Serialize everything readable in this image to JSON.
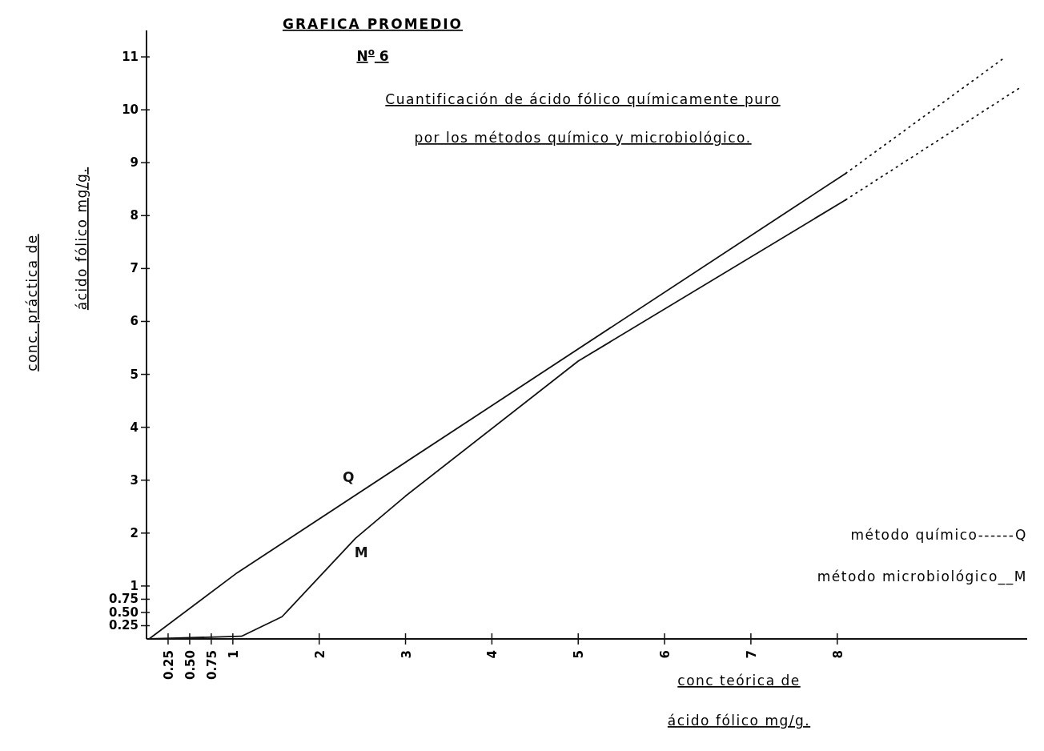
{
  "chart_data": {
    "type": "line",
    "title": "GRAFICA PROMEDIO",
    "subtitle": "N$^{o}$ 6",
    "xlabel": "conc teórica de ácido fólico mg/g.",
    "ylabel": "conc. práctica de ácido fólico mg/g.",
    "annotations": [
      "Cuantificación de ácido fólico químicamente puro por los métodos químico y microbiológico.",
      "método químico------Q",
      "método microbiológico__M"
    ],
    "series": [
      {
        "name": "Q",
        "color": "#111111",
        "x": [
          0.03,
          1.05,
          8.1
        ],
        "values": [
          0,
          1.25,
          8.8
        ]
      },
      {
        "color": "#111111",
        "x": [
          8.1,
          9.95
        ],
        "values": [
          8.8,
          11
        ],
        "line_style": "dotted"
      },
      {
        "name": "M",
        "color": "#111111",
        "x": [
          0.03,
          1.1,
          1.57,
          2.42,
          3.0,
          5.0,
          8.1
        ],
        "values": [
          0,
          0.05,
          0.42,
          1.9,
          2.7,
          5.25,
          8.3
        ]
      },
      {
        "color": "#111111",
        "x": [
          8.1,
          10.1
        ],
        "values": [
          8.3,
          10.4
        ],
        "line_style": "dotted"
      }
    ],
    "xlim": [
      0,
      10.2
    ],
    "ylim": [
      0,
      11.5
    ],
    "xticks": [
      {
        "value": 0.25,
        "label": "0.25"
      },
      {
        "value": 0.5,
        "label": "0.50"
      },
      {
        "value": 0.75,
        "label": "0.75"
      },
      1,
      2,
      3,
      4,
      5,
      6,
      7,
      8
    ],
    "yticks": [
      {
        "value": 0.25,
        "label": "0.25"
      },
      {
        "value": 0.5,
        "label": "0.50"
      },
      {
        "value": 0.75,
        "label": "0.75"
      },
      1,
      2,
      3,
      4,
      5,
      6,
      7,
      8,
      9,
      10,
      11
    ],
    "legend": false,
    "grid": false,
    "marker": "none",
    "line_style": "solid"
  }
}
